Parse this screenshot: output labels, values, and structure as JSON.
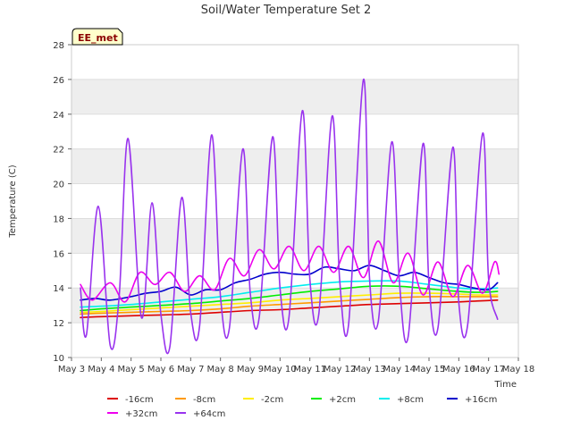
{
  "chart_data": {
    "type": "line",
    "title": "Soil/Water Temperature Set 2",
    "xlabel": "Time",
    "ylabel": "Temperature (C)",
    "station_label": "EE_met",
    "ylim": [
      10,
      28
    ],
    "yticks": [
      10,
      12,
      14,
      16,
      18,
      20,
      22,
      24,
      26,
      28
    ],
    "xlim": [
      0,
      15
    ],
    "xticks": [
      "May 3",
      "May 4",
      "May 5",
      "May 6",
      "May 7",
      "May 8",
      "May 9",
      "May 10",
      "May 11",
      "May 12",
      "May 13",
      "May 14",
      "May 15",
      "May 16",
      "May 17",
      "May 18"
    ],
    "grid": "horizontal bands",
    "legend_position": "bottom",
    "series": [
      {
        "name": "-16cm",
        "color": "#dd0000",
        "x": [
          0.3,
          1,
          2,
          3,
          4,
          5,
          6,
          7,
          8,
          9,
          10,
          11,
          12,
          13,
          13.6,
          14.3
        ],
        "y": [
          12.3,
          12.35,
          12.4,
          12.45,
          12.5,
          12.6,
          12.7,
          12.75,
          12.85,
          12.95,
          13.05,
          13.1,
          13.15,
          13.2,
          13.25,
          13.3
        ]
      },
      {
        "name": "-8cm",
        "color": "#ff9900",
        "x": [
          0.3,
          1,
          2,
          3,
          4,
          5,
          6,
          7,
          8,
          9,
          10,
          11,
          12,
          13,
          13.6,
          14.3
        ],
        "y": [
          12.5,
          12.55,
          12.6,
          12.65,
          12.7,
          12.8,
          12.95,
          13.05,
          13.15,
          13.25,
          13.35,
          13.45,
          13.5,
          13.5,
          13.5,
          13.5
        ]
      },
      {
        "name": "-2cm",
        "color": "#ffee00",
        "x": [
          0.3,
          1,
          2,
          3,
          4,
          5,
          6,
          7,
          8,
          9,
          10,
          11,
          12,
          13,
          13.6,
          14.3
        ],
        "y": [
          12.6,
          12.65,
          12.75,
          12.85,
          12.95,
          13.05,
          13.15,
          13.3,
          13.4,
          13.5,
          13.6,
          13.7,
          13.7,
          13.65,
          13.6,
          13.6
        ]
      },
      {
        "name": "+2cm",
        "color": "#00ee00",
        "x": [
          0.3,
          1,
          2,
          3,
          4,
          5,
          6,
          7,
          8,
          9,
          10,
          11,
          12,
          13,
          13.6,
          14.3
        ],
        "y": [
          12.7,
          12.8,
          12.9,
          13.0,
          13.1,
          13.25,
          13.4,
          13.6,
          13.8,
          13.95,
          14.1,
          14.1,
          13.95,
          13.8,
          13.75,
          13.8
        ]
      },
      {
        "name": "+8cm",
        "color": "#00eeee",
        "x": [
          0.3,
          1,
          2,
          3,
          4,
          5,
          6,
          7,
          8,
          9,
          10,
          11,
          12,
          13,
          13.6,
          14.3
        ],
        "y": [
          12.9,
          12.95,
          13.05,
          13.2,
          13.35,
          13.5,
          13.75,
          14.0,
          14.2,
          14.35,
          14.4,
          14.4,
          14.2,
          14.0,
          13.95,
          14.0
        ]
      },
      {
        "name": "+16cm",
        "color": "#0000cc",
        "x": [
          0.3,
          0.8,
          1.3,
          2,
          2.5,
          3,
          3.5,
          4,
          4.5,
          5,
          5.5,
          6,
          6.5,
          7,
          7.5,
          8,
          8.5,
          9,
          9.5,
          10,
          10.5,
          11,
          11.5,
          12,
          12.5,
          13,
          13.5,
          14,
          14.3
        ],
        "y": [
          13.3,
          13.4,
          13.3,
          13.5,
          13.7,
          13.8,
          14.05,
          13.6,
          13.9,
          13.9,
          14.3,
          14.5,
          14.8,
          14.9,
          14.8,
          14.8,
          15.2,
          15.1,
          15.0,
          15.3,
          15.0,
          14.7,
          14.9,
          14.6,
          14.3,
          14.2,
          14.0,
          13.9,
          14.3
        ]
      },
      {
        "name": "+32cm",
        "color": "#ee00ee",
        "x": [
          0.3,
          0.7,
          1.3,
          1.8,
          2.3,
          2.8,
          3.3,
          3.8,
          4.3,
          4.8,
          5.3,
          5.8,
          6.3,
          6.8,
          7.3,
          7.8,
          8.3,
          8.8,
          9.3,
          9.8,
          10.3,
          10.8,
          11.3,
          11.8,
          12.3,
          12.8,
          13.3,
          13.8,
          14.2,
          14.35
        ],
        "y": [
          14.2,
          13.3,
          14.3,
          13.2,
          14.9,
          14.2,
          14.9,
          13.8,
          14.7,
          13.9,
          15.7,
          14.7,
          16.2,
          15.1,
          16.4,
          15.0,
          16.4,
          14.9,
          16.4,
          14.6,
          16.7,
          14.3,
          16.0,
          13.6,
          15.5,
          13.5,
          15.3,
          13.7,
          15.5,
          14.8
        ]
      },
      {
        "name": "+64cm",
        "color": "#9933ee",
        "x": [
          0.3,
          0.5,
          0.9,
          1.3,
          1.6,
          1.9,
          2.35,
          2.7,
          3.0,
          3.3,
          3.7,
          4.0,
          4.3,
          4.7,
          5.0,
          5.3,
          5.75,
          6.0,
          6.3,
          6.75,
          7.0,
          7.3,
          7.75,
          8.0,
          8.3,
          8.75,
          9.0,
          9.3,
          9.8,
          10.0,
          10.3,
          10.75,
          11.0,
          11.3,
          11.8,
          12.0,
          12.3,
          12.8,
          13.0,
          13.3,
          13.8,
          14.0,
          14.3
        ],
        "y": [
          14.0,
          11.3,
          18.7,
          10.7,
          13.5,
          22.6,
          12.3,
          18.9,
          12.5,
          10.6,
          19.2,
          12.6,
          11.8,
          22.8,
          13.5,
          11.7,
          22.0,
          13.7,
          12.3,
          22.7,
          14.0,
          12.3,
          24.2,
          14.5,
          12.5,
          23.9,
          14.5,
          11.9,
          26.0,
          14.7,
          12.1,
          22.4,
          14.5,
          11.2,
          22.3,
          14.2,
          11.7,
          22.1,
          13.2,
          11.9,
          22.9,
          14.5,
          12.2
        ]
      }
    ]
  }
}
